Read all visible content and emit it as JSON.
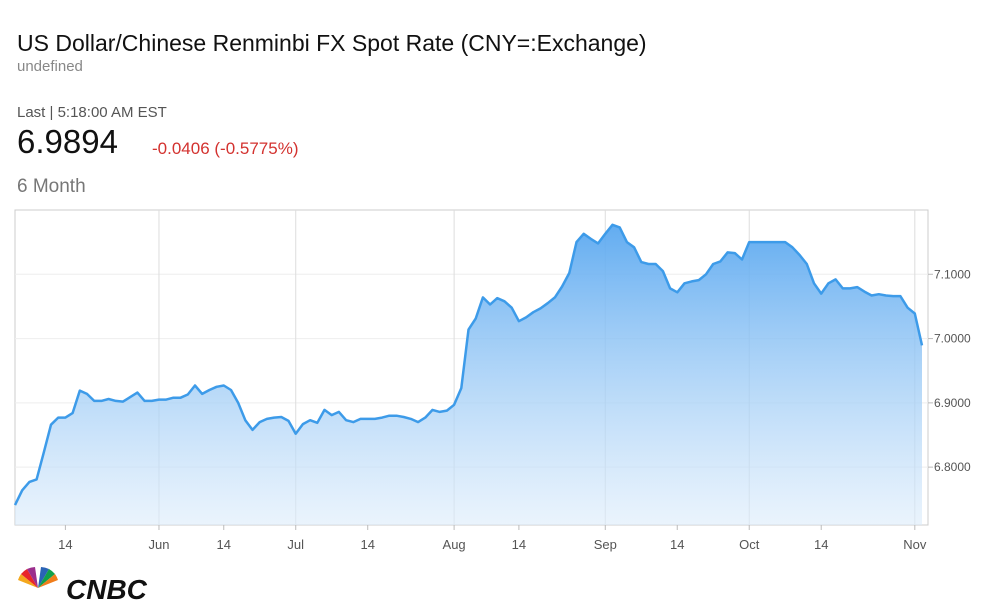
{
  "header": {
    "title": "US Dollar/Chinese Renminbi FX Spot Rate (CNY=:Exchange)",
    "subtitle": "undefined",
    "last": "Last | 5:18:00 AM EST",
    "price": "6.9894",
    "change": "-0.0406 (-0.5775%)",
    "range": "6 Month"
  },
  "footer": {
    "logo": "CNBC"
  },
  "chart_data": {
    "type": "area",
    "color": "#3d9be9",
    "grid": true,
    "ylim": [
      6.71,
      7.2
    ],
    "yticks": [
      {
        "value": 6.8,
        "label": "6.8000"
      },
      {
        "value": 6.9,
        "label": "6.9000"
      },
      {
        "value": 7.0,
        "label": "7.0000"
      },
      {
        "value": 7.1,
        "label": "7.1000"
      }
    ],
    "categories": [
      null,
      null,
      null,
      null,
      null,
      null,
      null,
      "14",
      null,
      null,
      null,
      null,
      null,
      null,
      null,
      null,
      null,
      null,
      null,
      null,
      "Jun",
      null,
      null,
      null,
      null,
      null,
      null,
      null,
      null,
      "14",
      null,
      null,
      null,
      null,
      null,
      null,
      null,
      null,
      null,
      "Jul",
      null,
      null,
      null,
      null,
      null,
      null,
      null,
      null,
      null,
      "14",
      null,
      null,
      null,
      null,
      null,
      null,
      null,
      null,
      null,
      null,
      null,
      "Aug",
      null,
      null,
      null,
      null,
      null,
      null,
      null,
      null,
      "14",
      null,
      null,
      null,
      null,
      null,
      null,
      null,
      null,
      null,
      null,
      null,
      "Sep",
      null,
      null,
      null,
      null,
      null,
      null,
      null,
      null,
      null,
      "14",
      null,
      null,
      null,
      null,
      null,
      null,
      null,
      null,
      null,
      "Oct",
      null,
      null,
      null,
      null,
      null,
      null,
      null,
      null,
      null,
      "14",
      null,
      null,
      null,
      null,
      null,
      null,
      null,
      null,
      null,
      null,
      null,
      null,
      "Nov",
      null
    ],
    "values": [
      6.741,
      6.764,
      6.777,
      6.781,
      6.823,
      6.866,
      6.877,
      6.877,
      6.884,
      6.919,
      6.914,
      6.903,
      6.903,
      6.906,
      6.903,
      6.902,
      6.909,
      6.916,
      6.903,
      6.903,
      6.905,
      6.905,
      6.908,
      6.908,
      6.913,
      6.927,
      6.914,
      6.92,
      6.925,
      6.927,
      6.92,
      6.9,
      6.873,
      6.858,
      6.87,
      6.875,
      6.877,
      6.878,
      6.872,
      6.852,
      6.867,
      6.873,
      6.869,
      6.889,
      6.881,
      6.886,
      6.873,
      6.87,
      6.875,
      6.875,
      6.875,
      6.877,
      6.88,
      6.88,
      6.878,
      6.875,
      6.87,
      6.877,
      6.889,
      6.886,
      6.888,
      6.897,
      6.923,
      7.014,
      7.031,
      7.064,
      7.053,
      7.063,
      7.058,
      7.048,
      7.027,
      7.033,
      7.041,
      7.047,
      7.055,
      7.064,
      7.081,
      7.102,
      7.15,
      7.163,
      7.155,
      7.148,
      7.163,
      7.177,
      7.173,
      7.15,
      7.142,
      7.119,
      7.116,
      7.116,
      7.105,
      7.078,
      7.072,
      7.086,
      7.089,
      7.091,
      7.1,
      7.116,
      7.12,
      7.134,
      7.133,
      7.123,
      7.15,
      7.15,
      7.15,
      7.15,
      7.15,
      7.15,
      7.142,
      7.13,
      7.116,
      7.086,
      7.07,
      7.086,
      7.092,
      7.078,
      7.078,
      7.08,
      7.073,
      7.067,
      7.069,
      7.067,
      7.066,
      7.066,
      7.048,
      7.039,
      6.9894
    ]
  }
}
